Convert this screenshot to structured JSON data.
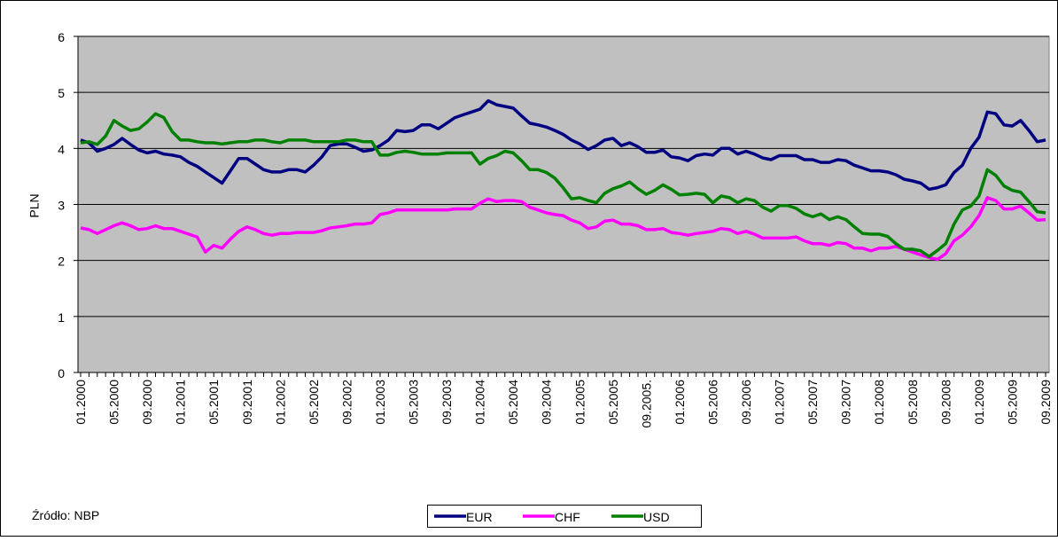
{
  "chart_data": {
    "type": "line",
    "y_label": "PLN",
    "source": "Źródło: NBP",
    "categories": [
      "01.2000",
      null,
      null,
      null,
      "05.2000",
      null,
      null,
      null,
      "09.2000",
      null,
      null,
      null,
      "01.2001",
      null,
      null,
      null,
      "05.2001",
      null,
      null,
      null,
      "09.2001",
      null,
      null,
      null,
      "01.2002",
      null,
      null,
      null,
      "05.2002",
      null,
      null,
      null,
      "09.2002",
      null,
      null,
      null,
      "01.2003",
      null,
      null,
      null,
      "05.2003",
      null,
      null,
      null,
      "09.2003",
      null,
      null,
      null,
      "01.2004",
      null,
      null,
      null,
      "05.2004",
      null,
      null,
      null,
      "09.2004",
      null,
      null,
      null,
      "01.2005",
      null,
      null,
      null,
      "05.2005",
      null,
      null,
      null,
      "09.2005.",
      null,
      null,
      null,
      "01.2006",
      null,
      null,
      null,
      "05.2006",
      null,
      null,
      null,
      "09.2006",
      null,
      null,
      null,
      "01.2007",
      null,
      null,
      null,
      "05.2007",
      null,
      null,
      null,
      "09.2007",
      null,
      null,
      null,
      "01.2008",
      null,
      null,
      null,
      "05.2008",
      null,
      null,
      null,
      "09.2008",
      null,
      null,
      null,
      "01.2009",
      null,
      null,
      null,
      "05.2009",
      null,
      null,
      null,
      "09.2009"
    ],
    "series": [
      {
        "name": "EUR",
        "color": "#000080",
        "values": [
          4.15,
          4.1,
          3.95,
          4.0,
          4.07,
          4.18,
          4.07,
          3.97,
          3.92,
          3.95,
          3.9,
          3.88,
          3.85,
          3.75,
          3.68,
          3.58,
          3.48,
          3.38,
          3.6,
          3.82,
          3.82,
          3.72,
          3.62,
          3.58,
          3.58,
          3.62,
          3.62,
          3.58,
          3.7,
          3.85,
          4.05,
          4.08,
          4.08,
          4.02,
          3.95,
          3.97,
          4.05,
          4.15,
          4.32,
          4.3,
          4.32,
          4.42,
          4.42,
          4.35,
          4.45,
          4.55,
          4.6,
          4.65,
          4.7,
          4.85,
          4.78,
          4.75,
          4.72,
          4.58,
          4.45,
          4.42,
          4.38,
          4.32,
          4.25,
          4.15,
          4.08,
          3.98,
          4.05,
          4.15,
          4.18,
          4.05,
          4.1,
          4.03,
          3.93,
          3.93,
          3.97,
          3.85,
          3.83,
          3.78,
          3.87,
          3.9,
          3.88,
          4.0,
          4.0,
          3.9,
          3.95,
          3.9,
          3.83,
          3.8,
          3.87,
          3.87,
          3.87,
          3.8,
          3.8,
          3.75,
          3.75,
          3.8,
          3.78,
          3.7,
          3.65,
          3.6,
          3.6,
          3.58,
          3.53,
          3.45,
          3.42,
          3.38,
          3.27,
          3.3,
          3.35,
          3.57,
          3.7,
          4.0,
          4.2,
          4.65,
          4.62,
          4.42,
          4.4,
          4.5,
          4.32,
          4.12,
          4.15
        ]
      },
      {
        "name": "CHF",
        "color": "#ff00ff",
        "values": [
          2.58,
          2.55,
          2.48,
          2.55,
          2.62,
          2.67,
          2.62,
          2.55,
          2.57,
          2.62,
          2.57,
          2.57,
          2.52,
          2.47,
          2.42,
          2.15,
          2.27,
          2.22,
          2.38,
          2.52,
          2.6,
          2.55,
          2.48,
          2.45,
          2.48,
          2.48,
          2.5,
          2.5,
          2.5,
          2.53,
          2.58,
          2.6,
          2.62,
          2.65,
          2.65,
          2.67,
          2.82,
          2.85,
          2.9,
          2.9,
          2.9,
          2.9,
          2.9,
          2.9,
          2.9,
          2.92,
          2.92,
          2.92,
          3.02,
          3.1,
          3.05,
          3.07,
          3.07,
          3.05,
          2.95,
          2.9,
          2.85,
          2.82,
          2.8,
          2.72,
          2.67,
          2.57,
          2.6,
          2.7,
          2.72,
          2.65,
          2.65,
          2.62,
          2.55,
          2.55,
          2.57,
          2.5,
          2.48,
          2.45,
          2.48,
          2.5,
          2.52,
          2.57,
          2.55,
          2.48,
          2.52,
          2.47,
          2.4,
          2.4,
          2.4,
          2.4,
          2.42,
          2.35,
          2.3,
          2.3,
          2.27,
          2.32,
          2.3,
          2.22,
          2.22,
          2.17,
          2.22,
          2.22,
          2.25,
          2.2,
          2.15,
          2.1,
          2.05,
          2.02,
          2.12,
          2.35,
          2.45,
          2.6,
          2.8,
          3.12,
          3.07,
          2.92,
          2.92,
          2.97,
          2.85,
          2.72,
          2.73
        ]
      },
      {
        "name": "USD",
        "color": "#008000",
        "values": [
          4.1,
          4.12,
          4.07,
          4.22,
          4.5,
          4.4,
          4.32,
          4.35,
          4.47,
          4.62,
          4.55,
          4.3,
          4.15,
          4.15,
          4.12,
          4.1,
          4.1,
          4.08,
          4.1,
          4.12,
          4.12,
          4.15,
          4.15,
          4.12,
          4.1,
          4.15,
          4.15,
          4.15,
          4.12,
          4.12,
          4.12,
          4.12,
          4.15,
          4.15,
          4.12,
          4.12,
          3.88,
          3.88,
          3.93,
          3.95,
          3.93,
          3.9,
          3.9,
          3.9,
          3.92,
          3.92,
          3.92,
          3.92,
          3.72,
          3.82,
          3.87,
          3.95,
          3.92,
          3.78,
          3.62,
          3.62,
          3.57,
          3.47,
          3.3,
          3.1,
          3.12,
          3.07,
          3.03,
          3.2,
          3.28,
          3.33,
          3.4,
          3.28,
          3.18,
          3.25,
          3.35,
          3.27,
          3.17,
          3.18,
          3.2,
          3.18,
          3.03,
          3.15,
          3.12,
          3.03,
          3.1,
          3.07,
          2.95,
          2.88,
          2.98,
          2.98,
          2.93,
          2.83,
          2.78,
          2.83,
          2.73,
          2.78,
          2.73,
          2.6,
          2.48,
          2.47,
          2.47,
          2.43,
          2.3,
          2.2,
          2.2,
          2.17,
          2.07,
          2.18,
          2.3,
          2.65,
          2.9,
          2.97,
          3.15,
          3.62,
          3.52,
          3.33,
          3.25,
          3.22,
          3.05,
          2.87,
          2.85
        ]
      }
    ],
    "ylim": [
      0,
      6
    ],
    "yticks": [
      0,
      1,
      2,
      3,
      4,
      5,
      6
    ],
    "grid": true,
    "legend": "bottom"
  }
}
